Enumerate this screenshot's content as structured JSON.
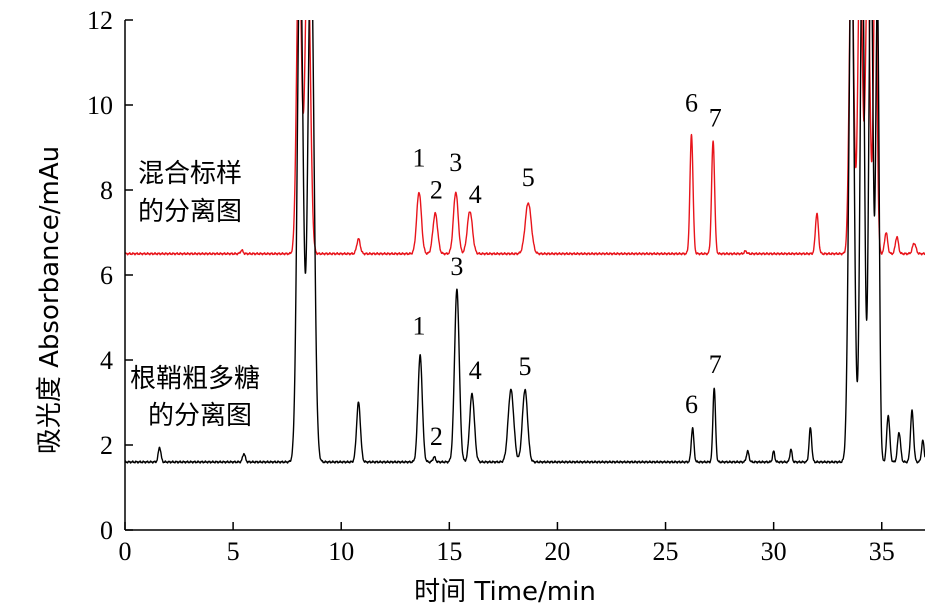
{
  "chart_data": {
    "type": "line",
    "title": "",
    "xlabel": "时间 Time/min",
    "ylabel": "吸光度 Absorbance/mAu",
    "xlim": [
      0,
      37
    ],
    "ylim": [
      0,
      12
    ],
    "xticks": [
      0,
      5,
      10,
      15,
      20,
      25,
      30,
      35
    ],
    "yticks": [
      0,
      2,
      4,
      6,
      8,
      10,
      12
    ],
    "grid": false,
    "series": [
      {
        "name": "混合标样的分离图",
        "label_lines": [
          "混合标样",
          "的分离图"
        ],
        "color": "#e8141b",
        "baseline": 6.5,
        "peaks": [
          {
            "t": 5.4,
            "h": 6.58,
            "w": 0.06
          },
          {
            "t": 8.05,
            "h": 14.0,
            "w": 0.11
          },
          {
            "t": 8.45,
            "h": 14.0,
            "w": 0.12
          },
          {
            "t": 10.8,
            "h": 6.85,
            "w": 0.08
          },
          {
            "t": 13.6,
            "h": 7.95,
            "w": 0.11
          },
          {
            "t": 14.35,
            "h": 7.45,
            "w": 0.11
          },
          {
            "t": 15.3,
            "h": 7.95,
            "w": 0.11
          },
          {
            "t": 15.95,
            "h": 7.5,
            "w": 0.12
          },
          {
            "t": 18.65,
            "h": 7.7,
            "w": 0.14
          },
          {
            "t": 26.2,
            "h": 9.3,
            "w": 0.07
          },
          {
            "t": 27.2,
            "h": 9.15,
            "w": 0.07
          },
          {
            "t": 28.7,
            "h": 6.56,
            "w": 0.06
          },
          {
            "t": 32.0,
            "h": 7.45,
            "w": 0.07
          },
          {
            "t": 33.6,
            "h": 14.0,
            "w": 0.1
          },
          {
            "t": 34.0,
            "h": 14.0,
            "w": 0.1
          },
          {
            "t": 34.35,
            "h": 13.5,
            "w": 0.1
          },
          {
            "t": 34.7,
            "h": 14.0,
            "w": 0.08
          },
          {
            "t": 35.2,
            "h": 7.0,
            "w": 0.07
          },
          {
            "t": 35.7,
            "h": 6.9,
            "w": 0.07
          },
          {
            "t": 36.5,
            "h": 6.75,
            "w": 0.08
          }
        ],
        "peak_labels": [
          {
            "text": "1",
            "t": 13.6,
            "y": 8.55
          },
          {
            "text": "2",
            "t": 14.4,
            "y": 7.8
          },
          {
            "text": "3",
            "t": 15.3,
            "y": 8.45
          },
          {
            "text": "4",
            "t": 16.2,
            "y": 7.7
          },
          {
            "text": "5",
            "t": 18.65,
            "y": 8.1
          },
          {
            "text": "6",
            "t": 26.2,
            "y": 9.85
          },
          {
            "text": "7",
            "t": 27.3,
            "y": 9.5
          }
        ]
      },
      {
        "name": "根鞘粗多糖的分离图",
        "label_lines": [
          "根鞘粗多糖",
          "的分离图"
        ],
        "color": "#000000",
        "baseline": 1.6,
        "peaks": [
          {
            "t": 1.6,
            "h": 1.95,
            "w": 0.06
          },
          {
            "t": 5.5,
            "h": 1.8,
            "w": 0.06
          },
          {
            "t": 8.1,
            "h": 14.0,
            "w": 0.13
          },
          {
            "t": 8.6,
            "h": 14.0,
            "w": 0.14
          },
          {
            "t": 10.8,
            "h": 3.0,
            "w": 0.09
          },
          {
            "t": 13.65,
            "h": 4.1,
            "w": 0.1
          },
          {
            "t": 14.3,
            "h": 1.72,
            "w": 0.06
          },
          {
            "t": 15.35,
            "h": 5.65,
            "w": 0.11
          },
          {
            "t": 16.05,
            "h": 3.2,
            "w": 0.11
          },
          {
            "t": 17.85,
            "h": 3.3,
            "w": 0.13
          },
          {
            "t": 18.5,
            "h": 3.3,
            "w": 0.12
          },
          {
            "t": 26.25,
            "h": 2.4,
            "w": 0.06
          },
          {
            "t": 27.25,
            "h": 3.35,
            "w": 0.06
          },
          {
            "t": 28.8,
            "h": 1.85,
            "w": 0.06
          },
          {
            "t": 30.0,
            "h": 1.85,
            "w": 0.05
          },
          {
            "t": 30.8,
            "h": 1.9,
            "w": 0.05
          },
          {
            "t": 31.7,
            "h": 2.4,
            "w": 0.06
          },
          {
            "t": 33.6,
            "h": 14.0,
            "w": 0.12
          },
          {
            "t": 34.1,
            "h": 14.0,
            "w": 0.1
          },
          {
            "t": 34.5,
            "h": 14.0,
            "w": 0.1
          },
          {
            "t": 34.8,
            "h": 12.5,
            "w": 0.08
          },
          {
            "t": 35.3,
            "h": 2.7,
            "w": 0.07
          },
          {
            "t": 35.8,
            "h": 2.3,
            "w": 0.07
          },
          {
            "t": 36.4,
            "h": 2.8,
            "w": 0.07
          },
          {
            "t": 36.9,
            "h": 2.1,
            "w": 0.06
          }
        ],
        "peak_labels": [
          {
            "text": "1",
            "t": 13.6,
            "y": 4.6
          },
          {
            "text": "2",
            "t": 14.4,
            "y": 2.0
          },
          {
            "text": "3",
            "t": 15.35,
            "y": 6.0
          },
          {
            "text": "4",
            "t": 16.2,
            "y": 3.55
          },
          {
            "text": "5",
            "t": 18.5,
            "y": 3.65
          },
          {
            "text": "6",
            "t": 26.2,
            "y": 2.75
          },
          {
            "text": "7",
            "t": 27.3,
            "y": 3.7
          }
        ]
      }
    ]
  }
}
